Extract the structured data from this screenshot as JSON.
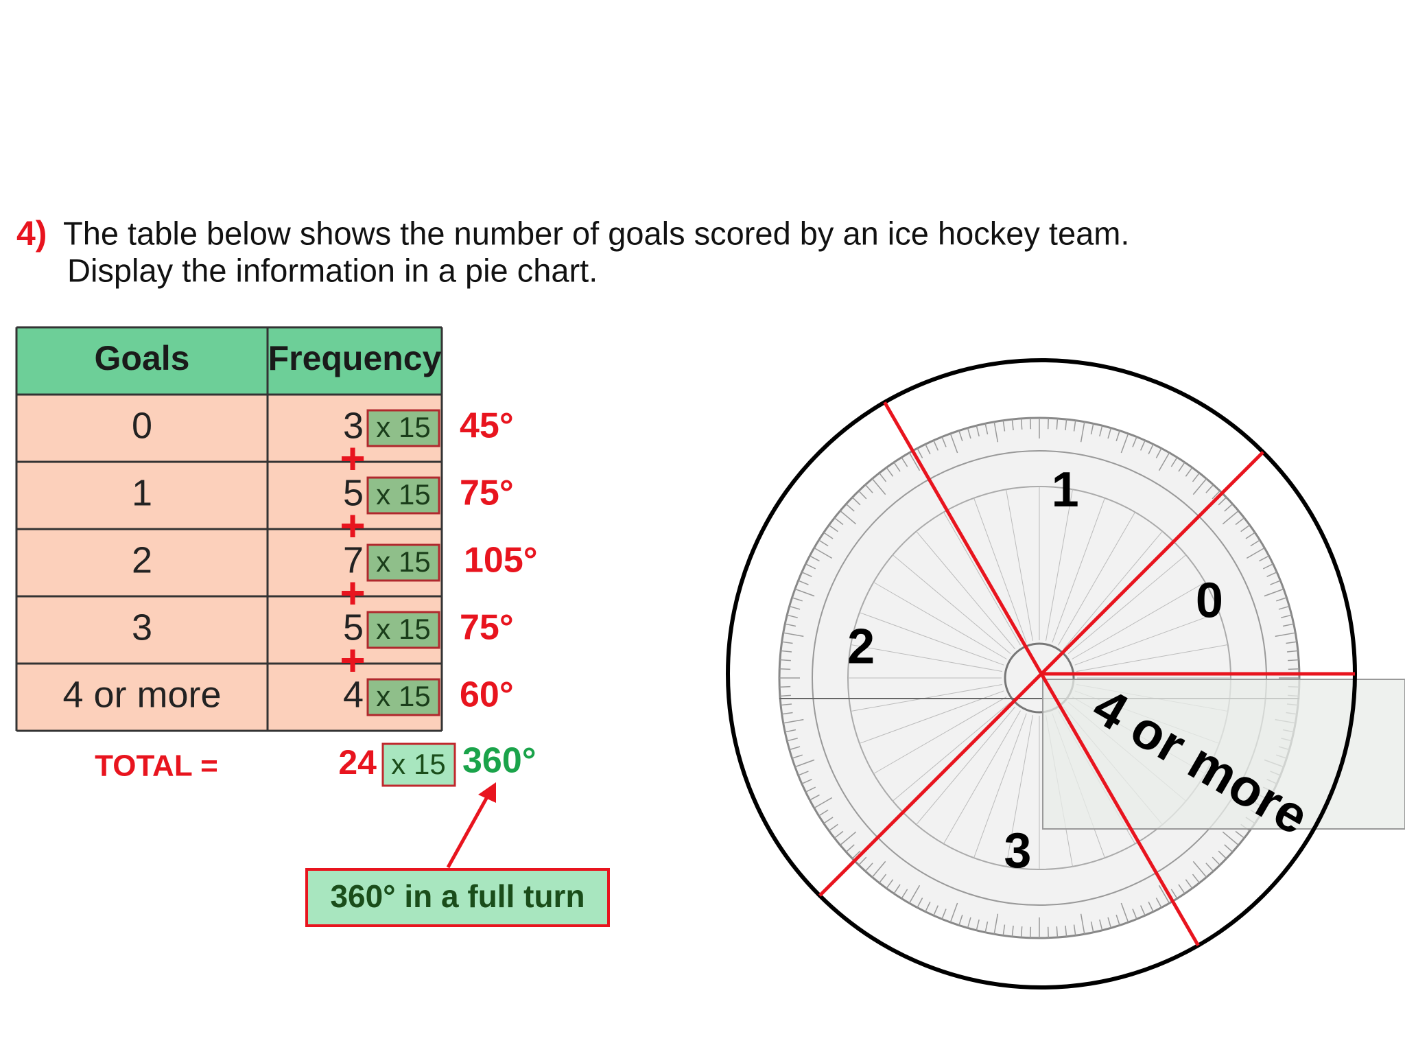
{
  "question": {
    "number": "4)",
    "lines": [
      "The table below shows the number of goals scored by an ice hockey team.",
      "Display the information in a pie chart."
    ]
  },
  "table": {
    "headers": [
      "Goals",
      "Frequency"
    ],
    "rows": [
      [
        "0",
        "3"
      ],
      [
        "1",
        "5"
      ],
      [
        "2",
        "7"
      ],
      [
        "3",
        "5"
      ],
      [
        "4 or more",
        "4"
      ]
    ]
  },
  "multiplier": "x 15",
  "plus": "+",
  "angles": [
    "45°",
    "75°",
    "105°",
    "75°",
    "60°"
  ],
  "total": {
    "label": "TOTAL =",
    "frequency": "24",
    "angle": "360°"
  },
  "callout": "360° in a full turn",
  "pie": {
    "labels": [
      "0",
      "1",
      "2",
      "3",
      "4 or more"
    ]
  }
}
